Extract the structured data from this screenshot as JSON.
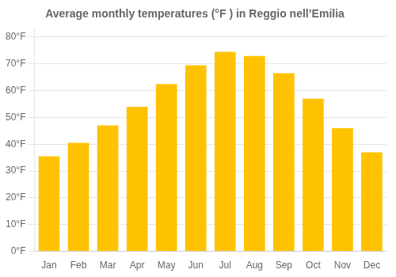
{
  "chart_data": {
    "type": "bar",
    "title": "Average monthly temperatures (°F ) in Reggio nell’Emilia",
    "categories": [
      "Jan",
      "Feb",
      "Mar",
      "Apr",
      "May",
      "Jun",
      "Jul",
      "Aug",
      "Sep",
      "Oct",
      "Nov",
      "Dec"
    ],
    "values": [
      35.5,
      40.5,
      47.0,
      54.0,
      62.5,
      69.5,
      74.5,
      73.0,
      66.5,
      57.0,
      46.0,
      37.0
    ],
    "color": "#FFC200",
    "ylim": [
      0,
      83
    ],
    "yticks": [
      {
        "value": 0,
        "label": "0°F"
      },
      {
        "value": 10,
        "label": "10°F"
      },
      {
        "value": 20,
        "label": "20°F"
      },
      {
        "value": 30,
        "label": "30°F"
      },
      {
        "value": 40,
        "label": "40°F"
      },
      {
        "value": 50,
        "label": "50°F"
      },
      {
        "value": 60,
        "label": "60°F"
      },
      {
        "value": 70,
        "label": "70°F"
      },
      {
        "value": 80,
        "label": "80°F"
      }
    ],
    "grid": true
  }
}
